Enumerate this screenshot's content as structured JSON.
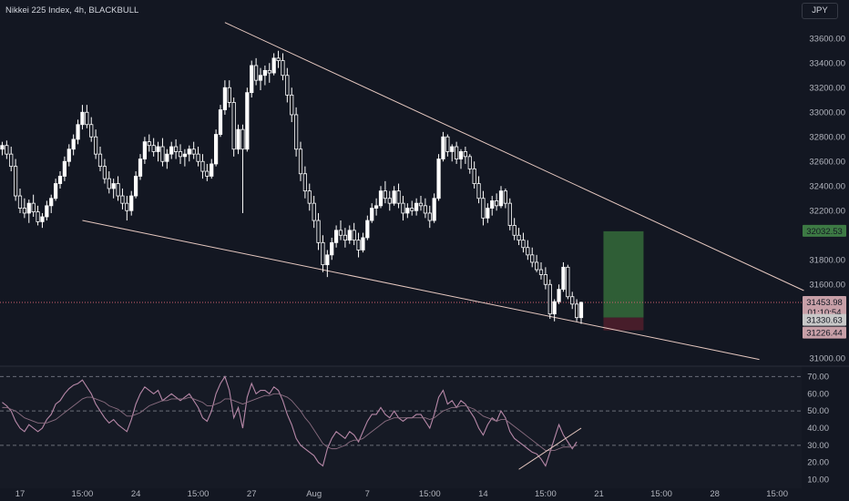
{
  "header": {
    "title": "Nikkei 225 Index, 4h, BLACKBULL",
    "currency": "JPY"
  },
  "price_badges": {
    "target": "32032.53",
    "last": "31453.98",
    "countdown": "01:10:54",
    "entry": "31330.63",
    "stop": "31226.44"
  },
  "colors": {
    "background": "#131722",
    "candle_body": "#ffffff",
    "trendline": "#e6c8c0",
    "rsi_line": "#b788a8",
    "rsi_ma": "#8a6d80",
    "target_zone": "#356b3a",
    "stop_zone": "#4a1e2b",
    "last_price_line": "#d06070"
  },
  "chart_data": [
    {
      "type": "candlestick",
      "title": "Nikkei 225 Index, 4h, BLACKBULL",
      "ylim": [
        30950,
        33750
      ],
      "y_ticks": [
        31000,
        31200,
        31400,
        31600,
        31800,
        32000,
        32200,
        32400,
        32600,
        32800,
        33000,
        33200,
        33400,
        33600
      ],
      "y_tick_labels": [
        "31000.00",
        "",
        "",
        "31600.00",
        "31800.00",
        "",
        "32200.00",
        "32400.00",
        "32600.00",
        "32800.00",
        "33000.00",
        "33200.00",
        "33400.00",
        "33600.00"
      ],
      "x_tick_labels": [
        "17",
        "15:00",
        "24",
        "15:00",
        "27",
        "Aug",
        "7",
        "15:00",
        "14",
        "15:00",
        "21",
        "15:00",
        "28",
        "15:00"
      ],
      "x_tick_indices": [
        4,
        18,
        30,
        44,
        56,
        70,
        82,
        96,
        108,
        122,
        134,
        148,
        160,
        174
      ],
      "visible_bar_count": 180,
      "trendlines": [
        {
          "name": "upper",
          "from": {
            "bar": 50,
            "price": 33730
          },
          "to": {
            "bar": 180,
            "price": 31550
          }
        },
        {
          "name": "lower",
          "from": {
            "bar": 18,
            "price": 32120
          },
          "to": {
            "bar": 170,
            "price": 30990
          }
        }
      ],
      "position": {
        "entry": 31330.63,
        "target": 32032.53,
        "stop": 31226.44,
        "from_bar": 135,
        "to_bar": 144
      },
      "last_price": 31453.98,
      "candles": [
        [
          32700,
          32760,
          32650,
          32730
        ],
        [
          32730,
          32770,
          32620,
          32660
        ],
        [
          32660,
          32720,
          32520,
          32560
        ],
        [
          32560,
          32620,
          32280,
          32320
        ],
        [
          32320,
          32380,
          32180,
          32220
        ],
        [
          32220,
          32300,
          32140,
          32180
        ],
        [
          32180,
          32290,
          32100,
          32260
        ],
        [
          32260,
          32330,
          32150,
          32190
        ],
        [
          32190,
          32240,
          32080,
          32110
        ],
        [
          32110,
          32180,
          32060,
          32150
        ],
        [
          32150,
          32280,
          32120,
          32240
        ],
        [
          32240,
          32330,
          32180,
          32300
        ],
        [
          32300,
          32460,
          32280,
          32420
        ],
        [
          32420,
          32520,
          32380,
          32480
        ],
        [
          32480,
          32640,
          32440,
          32600
        ],
        [
          32600,
          32740,
          32560,
          32700
        ],
        [
          32700,
          32820,
          32650,
          32780
        ],
        [
          32780,
          32940,
          32740,
          32900
        ],
        [
          32900,
          33060,
          32860,
          33000
        ],
        [
          33000,
          33060,
          32870,
          32900
        ],
        [
          32900,
          32960,
          32760,
          32800
        ],
        [
          32800,
          32860,
          32620,
          32660
        ],
        [
          32660,
          32720,
          32520,
          32560
        ],
        [
          32560,
          32620,
          32420,
          32460
        ],
        [
          32460,
          32520,
          32340,
          32380
        ],
        [
          32380,
          32460,
          32300,
          32420
        ],
        [
          32420,
          32480,
          32280,
          32320
        ],
        [
          32320,
          32380,
          32210,
          32260
        ],
        [
          32260,
          32320,
          32120,
          32200
        ],
        [
          32200,
          32360,
          32160,
          32320
        ],
        [
          32320,
          32520,
          32300,
          32480
        ],
        [
          32480,
          32660,
          32450,
          32620
        ],
        [
          32620,
          32800,
          32580,
          32760
        ],
        [
          32760,
          32820,
          32680,
          32730
        ],
        [
          32730,
          32790,
          32640,
          32680
        ],
        [
          32680,
          32760,
          32600,
          32720
        ],
        [
          32720,
          32790,
          32560,
          32600
        ],
        [
          32600,
          32700,
          32540,
          32660
        ],
        [
          32660,
          32760,
          32620,
          32720
        ],
        [
          32720,
          32780,
          32620,
          32680
        ],
        [
          32680,
          32740,
          32580,
          32640
        ],
        [
          32640,
          32700,
          32560,
          32660
        ],
        [
          32660,
          32730,
          32600,
          32700
        ],
        [
          32700,
          32760,
          32620,
          32660
        ],
        [
          32660,
          32720,
          32560,
          32600
        ],
        [
          32600,
          32660,
          32460,
          32520
        ],
        [
          32520,
          32580,
          32440,
          32480
        ],
        [
          32480,
          32620,
          32460,
          32580
        ],
        [
          32580,
          32860,
          32560,
          32820
        ],
        [
          32820,
          33060,
          32800,
          33020
        ],
        [
          33020,
          33260,
          32980,
          33200
        ],
        [
          33200,
          33260,
          33040,
          33080
        ],
        [
          33080,
          33120,
          32640,
          32700
        ],
        [
          32700,
          32900,
          32660,
          32860
        ],
        [
          32860,
          32900,
          32180,
          32700
        ],
        [
          32700,
          33200,
          32680,
          33160
        ],
        [
          33160,
          33420,
          33120,
          33380
        ],
        [
          33380,
          33440,
          33220,
          33260
        ],
        [
          33260,
          33360,
          33180,
          33300
        ],
        [
          33300,
          33380,
          33220,
          33340
        ],
        [
          33340,
          33400,
          33240,
          33320
        ],
        [
          33320,
          33480,
          33300,
          33440
        ],
        [
          33440,
          33500,
          33360,
          33420
        ],
        [
          33420,
          33480,
          33260,
          33300
        ],
        [
          33300,
          33360,
          33080,
          33140
        ],
        [
          33140,
          33200,
          32920,
          32980
        ],
        [
          32980,
          33040,
          32640,
          32700
        ],
        [
          32700,
          32760,
          32440,
          32500
        ],
        [
          32500,
          32560,
          32300,
          32360
        ],
        [
          32360,
          32420,
          32200,
          32260
        ],
        [
          32260,
          32320,
          32060,
          32120
        ],
        [
          32120,
          32180,
          31880,
          31940
        ],
        [
          31940,
          32000,
          31700,
          31760
        ],
        [
          31760,
          31880,
          31660,
          31840
        ],
        [
          31840,
          31980,
          31800,
          31940
        ],
        [
          31940,
          32080,
          31900,
          32040
        ],
        [
          32040,
          32120,
          31960,
          32000
        ],
        [
          32000,
          32060,
          31900,
          31960
        ],
        [
          31960,
          32080,
          31930,
          32040
        ],
        [
          32040,
          32100,
          31920,
          31960
        ],
        [
          31960,
          32020,
          31820,
          31880
        ],
        [
          31880,
          32020,
          31860,
          31980
        ],
        [
          31980,
          32160,
          31960,
          32120
        ],
        [
          32120,
          32260,
          32100,
          32220
        ],
        [
          32220,
          32300,
          32160,
          32240
        ],
        [
          32240,
          32400,
          32220,
          32360
        ],
        [
          32360,
          32440,
          32260,
          32300
        ],
        [
          32300,
          32360,
          32200,
          32260
        ],
        [
          32260,
          32400,
          32240,
          32360
        ],
        [
          32360,
          32420,
          32220,
          32260
        ],
        [
          32260,
          32320,
          32120,
          32180
        ],
        [
          32180,
          32260,
          32140,
          32220
        ],
        [
          32220,
          32280,
          32160,
          32200
        ],
        [
          32200,
          32300,
          32160,
          32260
        ],
        [
          32260,
          32320,
          32200,
          32240
        ],
        [
          32240,
          32300,
          32140,
          32180
        ],
        [
          32180,
          32240,
          32060,
          32120
        ],
        [
          32120,
          32340,
          32100,
          32300
        ],
        [
          32300,
          32660,
          32280,
          32620
        ],
        [
          32620,
          32840,
          32600,
          32800
        ],
        [
          32800,
          32820,
          32640,
          32680
        ],
        [
          32680,
          32740,
          32600,
          32720
        ],
        [
          32720,
          32760,
          32580,
          32620
        ],
        [
          32620,
          32700,
          32540,
          32680
        ],
        [
          32680,
          32720,
          32580,
          32640
        ],
        [
          32640,
          32660,
          32500,
          32540
        ],
        [
          32540,
          32600,
          32380,
          32420
        ],
        [
          32420,
          32480,
          32260,
          32300
        ],
        [
          32300,
          32360,
          32080,
          32140
        ],
        [
          32140,
          32260,
          32100,
          32220
        ],
        [
          32220,
          32320,
          32160,
          32280
        ],
        [
          32280,
          32340,
          32200,
          32240
        ],
        [
          32240,
          32400,
          32220,
          32360
        ],
        [
          32360,
          32380,
          32220,
          32260
        ],
        [
          32260,
          32300,
          32040,
          32080
        ],
        [
          32080,
          32140,
          31960,
          32000
        ],
        [
          32000,
          32060,
          31920,
          31960
        ],
        [
          31960,
          32020,
          31860,
          31900
        ],
        [
          31900,
          31960,
          31800,
          31840
        ],
        [
          31840,
          31900,
          31740,
          31780
        ],
        [
          31780,
          31840,
          31700,
          31720
        ],
        [
          31720,
          31780,
          31640,
          31680
        ],
        [
          31680,
          31740,
          31560,
          31600
        ],
        [
          31600,
          31640,
          31320,
          31360
        ],
        [
          31360,
          31480,
          31300,
          31460
        ],
        [
          31460,
          31600,
          31440,
          31560
        ],
        [
          31560,
          31780,
          31540,
          31740
        ],
        [
          31740,
          31760,
          31480,
          31500
        ],
        [
          31500,
          31540,
          31400,
          31440
        ],
        [
          31440,
          31480,
          31300,
          31330
        ],
        [
          31330,
          31460,
          31280,
          31453.98
        ]
      ]
    },
    {
      "type": "line",
      "title": "RSI",
      "ylim": [
        5,
        75
      ],
      "y_ticks": [
        10,
        20,
        30,
        40,
        50,
        60,
        70
      ],
      "y_tick_labels": [
        "10.00",
        "20.00",
        "30.00",
        "40.00",
        "50.00",
        "60.00",
        "70.00"
      ],
      "levels": [
        70,
        50,
        30
      ],
      "divergence_line": {
        "from": {
          "bar": 116,
          "value": 16
        },
        "to": {
          "bar": 130,
          "value": 40
        }
      },
      "series": [
        {
          "values": [
            55,
            53,
            50,
            44,
            40,
            38,
            42,
            40,
            38,
            40,
            45,
            48,
            54,
            56,
            60,
            63,
            65,
            66,
            68,
            64,
            60,
            54,
            50,
            46,
            43,
            45,
            42,
            40,
            38,
            45,
            54,
            60,
            64,
            62,
            60,
            62,
            56,
            58,
            60,
            58,
            56,
            58,
            60,
            56,
            52,
            46,
            44,
            50,
            60,
            66,
            70,
            62,
            46,
            52,
            40,
            58,
            66,
            60,
            62,
            62,
            60,
            64,
            62,
            56,
            48,
            42,
            34,
            30,
            28,
            26,
            24,
            20,
            18,
            28,
            34,
            38,
            36,
            34,
            38,
            36,
            32,
            38,
            44,
            48,
            48,
            52,
            48,
            46,
            50,
            46,
            44,
            46,
            46,
            48,
            48,
            44,
            40,
            48,
            58,
            62,
            54,
            56,
            52,
            56,
            54,
            50,
            46,
            40,
            36,
            42,
            46,
            44,
            50,
            46,
            38,
            34,
            32,
            30,
            28,
            26,
            25,
            22,
            18,
            26,
            34,
            42,
            36,
            32,
            28,
            32
          ]
        },
        {
          "values": [
            52,
            52,
            51,
            50,
            48,
            46,
            45,
            44,
            43,
            43,
            43,
            44,
            45,
            47,
            49,
            51,
            53,
            55,
            57,
            58,
            58,
            57,
            56,
            55,
            53,
            52,
            51,
            49,
            47,
            47,
            48,
            49,
            51,
            53,
            54,
            55,
            56,
            56,
            57,
            57,
            57,
            57,
            58,
            57,
            56,
            55,
            53,
            53,
            54,
            55,
            57,
            57,
            56,
            55,
            54,
            55,
            56,
            57,
            58,
            59,
            59,
            60,
            60,
            59,
            58,
            56,
            53,
            50,
            46,
            43,
            39,
            35,
            31,
            29,
            28,
            28,
            29,
            30,
            32,
            33,
            33,
            34,
            36,
            38,
            40,
            42,
            44,
            45,
            46,
            46,
            46,
            46,
            46,
            46,
            46,
            46,
            45,
            46,
            48,
            50,
            51,
            52,
            52,
            53,
            53,
            52,
            51,
            49,
            47,
            46,
            45,
            44,
            45,
            45,
            43,
            41,
            39,
            37,
            35,
            33,
            31,
            29,
            27,
            27,
            27,
            28,
            29,
            29,
            29,
            30
          ]
        }
      ]
    }
  ]
}
